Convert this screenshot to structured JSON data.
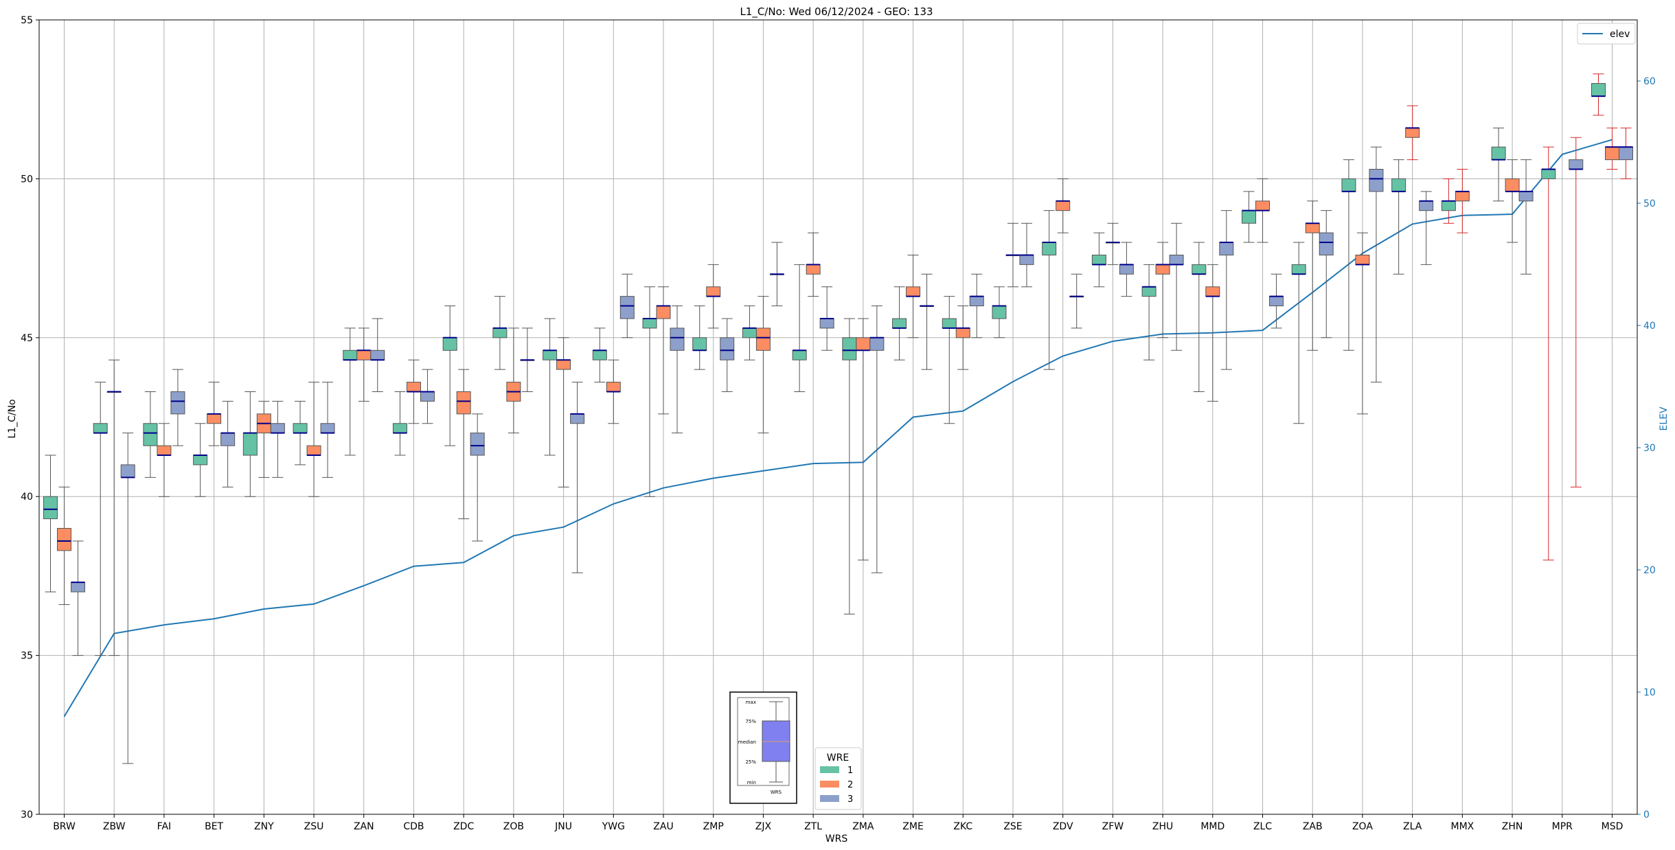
{
  "chart_data": {
    "type": "box",
    "title": "L1_C/No: Wed 06/12/2024 - GEO: 133",
    "xlabel": "WRS",
    "ylabel": "L1_C/No",
    "y2label": "ELEV",
    "ylim": [
      30,
      55
    ],
    "y2lim": [
      0,
      65
    ],
    "yticks": [
      "30",
      "35",
      "40",
      "45",
      "50",
      "55"
    ],
    "y2ticks": [
      "0",
      "10",
      "20",
      "30",
      "40",
      "50",
      "60"
    ],
    "grid": true,
    "categories": [
      "BRW",
      "ZBW",
      "FAI",
      "BET",
      "ZNY",
      "ZSU",
      "ZAN",
      "CDB",
      "ZDC",
      "ZOB",
      "JNU",
      "YWG",
      "ZAU",
      "ZMP",
      "ZJX",
      "ZTL",
      "ZMA",
      "ZME",
      "ZKC",
      "ZSE",
      "ZDV",
      "ZFW",
      "ZHU",
      "MMD",
      "ZLC",
      "ZAB",
      "ZOA",
      "ZLA",
      "MMX",
      "ZHN",
      "MPR",
      "MSD"
    ],
    "legend": {
      "title": "WRE",
      "entries": [
        "1",
        "2",
        "3"
      ],
      "placement": "bottom-center"
    },
    "elev_legend": {
      "label": "elev",
      "placement": "top-right"
    },
    "colors": {
      "wre1": "#66c2a5",
      "wre2": "#fc8d62",
      "wre3": "#8da0cb",
      "median": "#00008b",
      "elev": "#1f77b4",
      "whisker": "#555555",
      "whisker_alt": "#d62728"
    },
    "boxes": [
      {
        "cat": "BRW",
        "wre": 1,
        "q1": 39.3,
        "median": 39.6,
        "q3": 40.0,
        "min": 37.0,
        "max": 41.3
      },
      {
        "cat": "BRW",
        "wre": 2,
        "q1": 38.3,
        "median": 38.6,
        "q3": 39.0,
        "min": 36.6,
        "max": 40.3
      },
      {
        "cat": "BRW",
        "wre": 3,
        "q1": 37.0,
        "median": 37.3,
        "q3": 37.3,
        "min": 35.0,
        "max": 38.6
      },
      {
        "cat": "ZBW",
        "wre": 1,
        "q1": 42.0,
        "median": 42.0,
        "q3": 42.3,
        "min": 35.0,
        "max": 43.6
      },
      {
        "cat": "ZBW",
        "wre": 2,
        "q1": 43.3,
        "median": 43.3,
        "q3": 43.3,
        "min": 35.0,
        "max": 44.3
      },
      {
        "cat": "ZBW",
        "wre": 3,
        "q1": 40.6,
        "median": 40.6,
        "q3": 41.0,
        "min": 31.6,
        "max": 42.0
      },
      {
        "cat": "FAI",
        "wre": 1,
        "q1": 41.6,
        "median": 42.0,
        "q3": 42.3,
        "min": 40.6,
        "max": 43.3
      },
      {
        "cat": "FAI",
        "wre": 2,
        "q1": 41.3,
        "median": 41.3,
        "q3": 41.6,
        "min": 40.0,
        "max": 42.3
      },
      {
        "cat": "FAI",
        "wre": 3,
        "q1": 42.6,
        "median": 43.0,
        "q3": 43.3,
        "min": 41.6,
        "max": 44.0
      },
      {
        "cat": "BET",
        "wre": 1,
        "q1": 41.0,
        "median": 41.3,
        "q3": 41.3,
        "min": 40.0,
        "max": 42.3
      },
      {
        "cat": "BET",
        "wre": 2,
        "q1": 42.3,
        "median": 42.6,
        "q3": 42.6,
        "min": 41.6,
        "max": 43.6
      },
      {
        "cat": "BET",
        "wre": 3,
        "q1": 41.6,
        "median": 42.0,
        "q3": 42.0,
        "min": 40.3,
        "max": 43.0
      },
      {
        "cat": "ZNY",
        "wre": 1,
        "q1": 41.3,
        "median": 42.0,
        "q3": 42.0,
        "min": 40.0,
        "max": 43.3
      },
      {
        "cat": "ZNY",
        "wre": 2,
        "q1": 42.0,
        "median": 42.3,
        "q3": 42.6,
        "min": 40.6,
        "max": 43.0
      },
      {
        "cat": "ZNY",
        "wre": 3,
        "q1": 42.0,
        "median": 42.0,
        "q3": 42.3,
        "min": 40.6,
        "max": 43.0
      },
      {
        "cat": "ZSU",
        "wre": 1,
        "q1": 42.0,
        "median": 42.0,
        "q3": 42.3,
        "min": 41.0,
        "max": 43.0
      },
      {
        "cat": "ZSU",
        "wre": 2,
        "q1": 41.3,
        "median": 41.3,
        "q3": 41.6,
        "min": 40.0,
        "max": 43.6
      },
      {
        "cat": "ZSU",
        "wre": 3,
        "q1": 42.0,
        "median": 42.0,
        "q3": 42.3,
        "min": 40.6,
        "max": 43.6
      },
      {
        "cat": "ZAN",
        "wre": 1,
        "q1": 44.3,
        "median": 44.3,
        "q3": 44.6,
        "min": 41.3,
        "max": 45.3
      },
      {
        "cat": "ZAN",
        "wre": 2,
        "q1": 44.3,
        "median": 44.6,
        "q3": 44.6,
        "min": 43.0,
        "max": 45.3
      },
      {
        "cat": "ZAN",
        "wre": 3,
        "q1": 44.3,
        "median": 44.3,
        "q3": 44.6,
        "min": 43.3,
        "max": 45.6
      },
      {
        "cat": "CDB",
        "wre": 1,
        "q1": 42.0,
        "median": 42.0,
        "q3": 42.3,
        "min": 41.3,
        "max": 43.3
      },
      {
        "cat": "CDB",
        "wre": 2,
        "q1": 43.3,
        "median": 43.3,
        "q3": 43.6,
        "min": 42.3,
        "max": 44.3
      },
      {
        "cat": "CDB",
        "wre": 3,
        "q1": 43.0,
        "median": 43.3,
        "q3": 43.3,
        "min": 42.3,
        "max": 44.0
      },
      {
        "cat": "ZDC",
        "wre": 1,
        "q1": 44.6,
        "median": 45.0,
        "q3": 45.0,
        "min": 41.6,
        "max": 46.0
      },
      {
        "cat": "ZDC",
        "wre": 2,
        "q1": 42.6,
        "median": 43.0,
        "q3": 43.3,
        "min": 39.3,
        "max": 44.0
      },
      {
        "cat": "ZDC",
        "wre": 3,
        "q1": 41.3,
        "median": 41.6,
        "q3": 42.0,
        "min": 38.6,
        "max": 42.6
      },
      {
        "cat": "ZOB",
        "wre": 1,
        "q1": 45.0,
        "median": 45.3,
        "q3": 45.3,
        "min": 44.0,
        "max": 46.3
      },
      {
        "cat": "ZOB",
        "wre": 2,
        "q1": 43.0,
        "median": 43.3,
        "q3": 43.6,
        "min": 42.0,
        "max": 45.3
      },
      {
        "cat": "ZOB",
        "wre": 3,
        "q1": 44.3,
        "median": 44.3,
        "q3": 44.3,
        "min": 43.3,
        "max": 45.3
      },
      {
        "cat": "JNU",
        "wre": 1,
        "q1": 44.3,
        "median": 44.6,
        "q3": 44.6,
        "min": 41.3,
        "max": 45.6
      },
      {
        "cat": "JNU",
        "wre": 2,
        "q1": 44.0,
        "median": 44.3,
        "q3": 44.3,
        "min": 40.3,
        "max": 45.0
      },
      {
        "cat": "JNU",
        "wre": 3,
        "q1": 42.3,
        "median": 42.6,
        "q3": 42.6,
        "min": 37.6,
        "max": 43.6
      },
      {
        "cat": "YWG",
        "wre": 1,
        "q1": 44.3,
        "median": 44.6,
        "q3": 44.6,
        "min": 43.6,
        "max": 45.3
      },
      {
        "cat": "YWG",
        "wre": 2,
        "q1": 43.3,
        "median": 43.3,
        "q3": 43.6,
        "min": 42.3,
        "max": 44.3
      },
      {
        "cat": "YWG",
        "wre": 3,
        "q1": 45.6,
        "median": 46.0,
        "q3": 46.3,
        "min": 45.0,
        "max": 47.0
      },
      {
        "cat": "ZAU",
        "wre": 1,
        "q1": 45.3,
        "median": 45.6,
        "q3": 45.6,
        "min": 40.0,
        "max": 46.6
      },
      {
        "cat": "ZAU",
        "wre": 2,
        "q1": 45.6,
        "median": 46.0,
        "q3": 46.0,
        "min": 42.6,
        "max": 46.6
      },
      {
        "cat": "ZAU",
        "wre": 3,
        "q1": 44.6,
        "median": 45.0,
        "q3": 45.3,
        "min": 42.0,
        "max": 46.0
      },
      {
        "cat": "ZMP",
        "wre": 1,
        "q1": 44.6,
        "median": 44.6,
        "q3": 45.0,
        "min": 44.0,
        "max": 46.0
      },
      {
        "cat": "ZMP",
        "wre": 2,
        "q1": 46.3,
        "median": 46.3,
        "q3": 46.6,
        "min": 45.3,
        "max": 47.3
      },
      {
        "cat": "ZMP",
        "wre": 3,
        "q1": 44.3,
        "median": 44.6,
        "q3": 45.0,
        "min": 43.3,
        "max": 45.6
      },
      {
        "cat": "ZJX",
        "wre": 1,
        "q1": 45.0,
        "median": 45.3,
        "q3": 45.3,
        "min": 44.3,
        "max": 46.0
      },
      {
        "cat": "ZJX",
        "wre": 2,
        "q1": 44.6,
        "median": 45.0,
        "q3": 45.3,
        "min": 42.0,
        "max": 46.3
      },
      {
        "cat": "ZJX",
        "wre": 3,
        "q1": 47.0,
        "median": 47.0,
        "q3": 47.0,
        "min": 46.0,
        "max": 48.0
      },
      {
        "cat": "ZTL",
        "wre": 1,
        "q1": 44.3,
        "median": 44.6,
        "q3": 44.6,
        "min": 43.3,
        "max": 47.3
      },
      {
        "cat": "ZTL",
        "wre": 2,
        "q1": 47.0,
        "median": 47.3,
        "q3": 47.3,
        "min": 46.3,
        "max": 48.3
      },
      {
        "cat": "ZTL",
        "wre": 3,
        "q1": 45.3,
        "median": 45.6,
        "q3": 45.6,
        "min": 44.6,
        "max": 46.6
      },
      {
        "cat": "ZMA",
        "wre": 1,
        "q1": 44.3,
        "median": 44.6,
        "q3": 45.0,
        "min": 36.3,
        "max": 45.6
      },
      {
        "cat": "ZMA",
        "wre": 2,
        "q1": 44.6,
        "median": 44.6,
        "q3": 45.0,
        "min": 38.0,
        "max": 45.6
      },
      {
        "cat": "ZMA",
        "wre": 3,
        "q1": 44.6,
        "median": 45.0,
        "q3": 45.0,
        "min": 37.6,
        "max": 46.0
      },
      {
        "cat": "ZME",
        "wre": 1,
        "q1": 45.3,
        "median": 45.3,
        "q3": 45.6,
        "min": 44.3,
        "max": 46.6
      },
      {
        "cat": "ZME",
        "wre": 2,
        "q1": 46.3,
        "median": 46.3,
        "q3": 46.6,
        "min": 45.0,
        "max": 47.6
      },
      {
        "cat": "ZME",
        "wre": 3,
        "q1": 46.0,
        "median": 46.0,
        "q3": 46.0,
        "min": 44.0,
        "max": 47.0
      },
      {
        "cat": "ZKC",
        "wre": 1,
        "q1": 45.3,
        "median": 45.3,
        "q3": 45.6,
        "min": 42.3,
        "max": 46.3
      },
      {
        "cat": "ZKC",
        "wre": 2,
        "q1": 45.0,
        "median": 45.3,
        "q3": 45.3,
        "min": 44.0,
        "max": 46.0
      },
      {
        "cat": "ZKC",
        "wre": 3,
        "q1": 46.0,
        "median": 46.3,
        "q3": 46.3,
        "min": 45.0,
        "max": 47.0
      },
      {
        "cat": "ZSE",
        "wre": 1,
        "q1": 45.6,
        "median": 46.0,
        "q3": 46.0,
        "min": 45.0,
        "max": 46.6
      },
      {
        "cat": "ZSE",
        "wre": 2,
        "q1": 47.6,
        "median": 47.6,
        "q3": 47.6,
        "min": 46.6,
        "max": 48.6
      },
      {
        "cat": "ZSE",
        "wre": 3,
        "q1": 47.3,
        "median": 47.6,
        "q3": 47.6,
        "min": 46.6,
        "max": 48.6
      },
      {
        "cat": "ZDV",
        "wre": 1,
        "q1": 47.6,
        "median": 48.0,
        "q3": 48.0,
        "min": 44.0,
        "max": 49.0
      },
      {
        "cat": "ZDV",
        "wre": 2,
        "q1": 49.0,
        "median": 49.3,
        "q3": 49.3,
        "min": 48.3,
        "max": 50.0
      },
      {
        "cat": "ZDV",
        "wre": 3,
        "q1": 46.3,
        "median": 46.3,
        "q3": 46.3,
        "min": 45.3,
        "max": 47.0
      },
      {
        "cat": "ZFW",
        "wre": 1,
        "q1": 47.3,
        "median": 47.3,
        "q3": 47.6,
        "min": 46.6,
        "max": 48.3
      },
      {
        "cat": "ZFW",
        "wre": 2,
        "q1": 48.0,
        "median": 48.0,
        "q3": 48.0,
        "min": 47.3,
        "max": 48.6
      },
      {
        "cat": "ZFW",
        "wre": 3,
        "q1": 47.0,
        "median": 47.3,
        "q3": 47.3,
        "min": 46.3,
        "max": 48.0
      },
      {
        "cat": "ZHU",
        "wre": 1,
        "q1": 46.3,
        "median": 46.6,
        "q3": 46.6,
        "min": 44.3,
        "max": 47.3
      },
      {
        "cat": "ZHU",
        "wre": 2,
        "q1": 47.0,
        "median": 47.3,
        "q3": 47.3,
        "min": 45.0,
        "max": 48.0
      },
      {
        "cat": "ZHU",
        "wre": 3,
        "q1": 47.3,
        "median": 47.3,
        "q3": 47.6,
        "min": 44.6,
        "max": 48.6
      },
      {
        "cat": "MMD",
        "wre": 1,
        "q1": 47.0,
        "median": 47.0,
        "q3": 47.3,
        "min": 43.3,
        "max": 48.0
      },
      {
        "cat": "MMD",
        "wre": 2,
        "q1": 46.3,
        "median": 46.3,
        "q3": 46.6,
        "min": 43.0,
        "max": 47.3
      },
      {
        "cat": "MMD",
        "wre": 3,
        "q1": 47.6,
        "median": 48.0,
        "q3": 48.0,
        "min": 44.0,
        "max": 49.0
      },
      {
        "cat": "ZLC",
        "wre": 1,
        "q1": 48.6,
        "median": 49.0,
        "q3": 49.0,
        "min": 48.0,
        "max": 49.6
      },
      {
        "cat": "ZLC",
        "wre": 2,
        "q1": 49.0,
        "median": 49.0,
        "q3": 49.3,
        "min": 48.0,
        "max": 50.0
      },
      {
        "cat": "ZLC",
        "wre": 3,
        "q1": 46.0,
        "median": 46.3,
        "q3": 46.3,
        "min": 45.3,
        "max": 47.0
      },
      {
        "cat": "ZAB",
        "wre": 1,
        "q1": 47.0,
        "median": 47.0,
        "q3": 47.3,
        "min": 42.3,
        "max": 48.0
      },
      {
        "cat": "ZAB",
        "wre": 2,
        "q1": 48.3,
        "median": 48.6,
        "q3": 48.6,
        "min": 44.6,
        "max": 49.3
      },
      {
        "cat": "ZAB",
        "wre": 3,
        "q1": 47.6,
        "median": 48.0,
        "q3": 48.3,
        "min": 45.0,
        "max": 49.0
      },
      {
        "cat": "ZOA",
        "wre": 1,
        "q1": 49.6,
        "median": 49.6,
        "q3": 50.0,
        "min": 44.6,
        "max": 50.6
      },
      {
        "cat": "ZOA",
        "wre": 2,
        "q1": 47.3,
        "median": 47.3,
        "q3": 47.6,
        "min": 42.6,
        "max": 48.3
      },
      {
        "cat": "ZOA",
        "wre": 3,
        "q1": 49.6,
        "median": 50.0,
        "q3": 50.3,
        "min": 43.6,
        "max": 51.0
      },
      {
        "cat": "ZLA",
        "wre": 1,
        "q1": 49.6,
        "median": 49.6,
        "q3": 50.0,
        "min": 47.0,
        "max": 50.6
      },
      {
        "cat": "ZLA",
        "wre": 2,
        "q1": 51.3,
        "median": 51.6,
        "q3": 51.6,
        "min": 50.6,
        "max": 52.3
      },
      {
        "cat": "ZLA",
        "wre": 3,
        "q1": 49.0,
        "median": 49.3,
        "q3": 49.3,
        "min": 47.3,
        "max": 49.6
      },
      {
        "cat": "MMX",
        "wre": 1,
        "q1": 49.0,
        "median": 49.3,
        "q3": 49.3,
        "min": 48.6,
        "max": 50.0
      },
      {
        "cat": "MMX",
        "wre": 2,
        "q1": 49.3,
        "median": 49.6,
        "q3": 49.6,
        "min": 48.3,
        "max": 50.3
      },
      {
        "cat": "ZHN",
        "wre": 1,
        "q1": 50.6,
        "median": 50.6,
        "q3": 51.0,
        "min": 49.3,
        "max": 51.6
      },
      {
        "cat": "ZHN",
        "wre": 2,
        "q1": 49.6,
        "median": 49.6,
        "q3": 50.0,
        "min": 48.0,
        "max": 50.6
      },
      {
        "cat": "ZHN",
        "wre": 3,
        "q1": 49.3,
        "median": 49.6,
        "q3": 49.6,
        "min": 47.0,
        "max": 50.6
      },
      {
        "cat": "MPR",
        "wre": 1,
        "q1": 50.0,
        "median": 50.3,
        "q3": 50.3,
        "min": 38.0,
        "max": 51.0
      },
      {
        "cat": "MPR",
        "wre": 3,
        "q1": 50.3,
        "median": 50.3,
        "q3": 50.6,
        "min": 40.3,
        "max": 51.3
      },
      {
        "cat": "MSD",
        "wre": 1,
        "q1": 52.6,
        "median": 52.6,
        "q3": 53.0,
        "min": 52.0,
        "max": 53.3
      },
      {
        "cat": "MSD",
        "wre": 2,
        "q1": 50.6,
        "median": 51.0,
        "q3": 51.0,
        "min": 50.3,
        "max": 51.6
      },
      {
        "cat": "MSD",
        "wre": 3,
        "q1": 50.6,
        "median": 51.0,
        "q3": 51.0,
        "min": 50.0,
        "max": 51.6
      }
    ],
    "elev": [
      8.0,
      14.8,
      15.5,
      16.0,
      16.8,
      17.2,
      18.7,
      20.3,
      20.6,
      22.8,
      23.5,
      25.4,
      26.7,
      27.5,
      28.1,
      28.7,
      28.8,
      32.5,
      33.0,
      35.4,
      37.5,
      38.7,
      39.3,
      39.4,
      39.6,
      42.7,
      45.9,
      48.3,
      49.0,
      49.1,
      54.0,
      55.2
    ],
    "inset": {
      "labels": [
        "max",
        "75%",
        "median",
        "25%",
        "min"
      ],
      "xlabel": "WRS"
    }
  }
}
